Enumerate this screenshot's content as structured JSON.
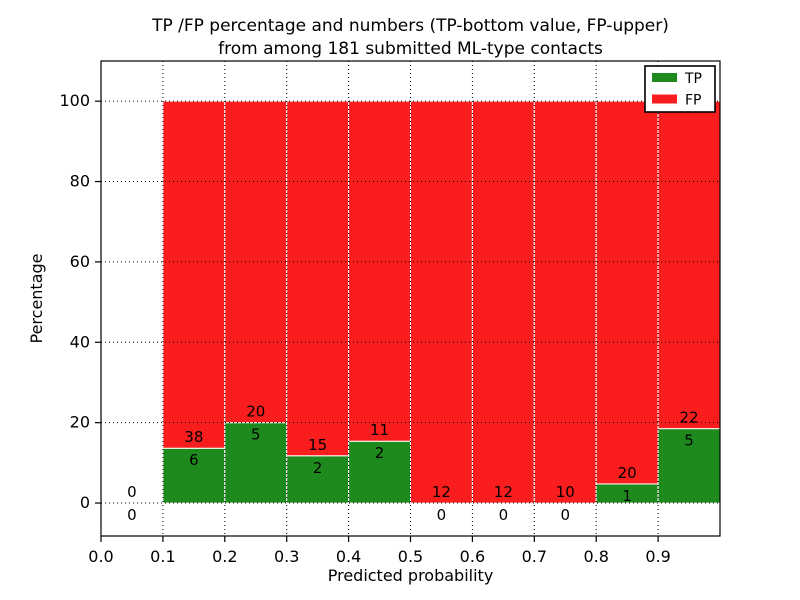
{
  "chart_data": {
    "type": "bar",
    "stacked": true,
    "title_line1": "TP /FP percentage and numbers (TP-bottom value, FP-upper)",
    "title_line2": "from among 181 submitted ML-type contacts",
    "xlabel": "Predicted probability",
    "ylabel": "Percentage",
    "total_contacts": 181,
    "bin_width": 0.1,
    "bins": [
      {
        "x0": 0.0,
        "x1": 0.1,
        "tp": 0,
        "fp": 0
      },
      {
        "x0": 0.1,
        "x1": 0.2,
        "tp": 6,
        "fp": 38
      },
      {
        "x0": 0.2,
        "x1": 0.3,
        "tp": 5,
        "fp": 20
      },
      {
        "x0": 0.3,
        "x1": 0.4,
        "tp": 2,
        "fp": 15
      },
      {
        "x0": 0.4,
        "x1": 0.5,
        "tp": 2,
        "fp": 11
      },
      {
        "x0": 0.5,
        "x1": 0.6,
        "tp": 0,
        "fp": 12
      },
      {
        "x0": 0.6,
        "x1": 0.7,
        "tp": 0,
        "fp": 12
      },
      {
        "x0": 0.7,
        "x1": 0.8,
        "tp": 0,
        "fp": 10
      },
      {
        "x0": 0.8,
        "x1": 0.9,
        "tp": 1,
        "fp": 20
      },
      {
        "x0": 0.9,
        "x1": 1.0,
        "tp": 5,
        "fp": 22
      }
    ],
    "tp_percentages": [
      0,
      13.64,
      20.0,
      11.76,
      15.38,
      0,
      0,
      0,
      4.76,
      18.52
    ],
    "xticks": [
      "0.0",
      "0.1",
      "0.2",
      "0.3",
      "0.4",
      "0.5",
      "0.6",
      "0.7",
      "0.8",
      "0.9"
    ],
    "yticks": [
      "0",
      "20",
      "40",
      "60",
      "80",
      "100"
    ],
    "xlim": [
      0.0,
      1.0
    ],
    "ylim": [
      -8.2,
      110.0
    ],
    "grid": "dotted",
    "legend": {
      "position": "upper right",
      "items": [
        {
          "label": "TP",
          "color": "#1e8a1e"
        },
        {
          "label": "FP",
          "color": "#f91d1d"
        }
      ]
    }
  }
}
